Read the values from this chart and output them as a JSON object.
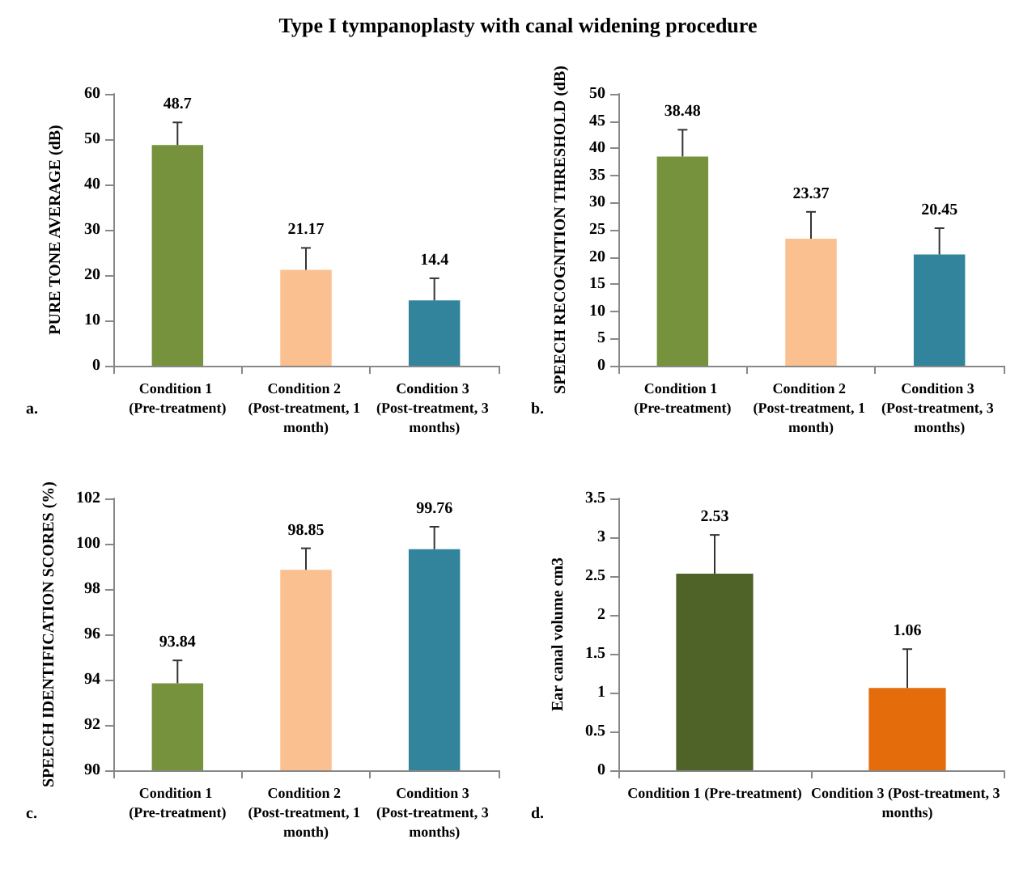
{
  "chart_data": [
    {
      "type": "bar",
      "title": "Type I tympanoplasty with canal widening procedure",
      "ylabel": "PURE TONE AVERAGE (dB)",
      "annotations": [
        "a."
      ],
      "categories": [
        "Condition 1 (Pre-treatment)",
        "Condition 2 (Post-treatment, 1 month)",
        "Condition 3 (Post-treatment, 3 months)"
      ],
      "values": [
        48.7,
        21.17,
        14.4
      ],
      "colors": [
        "#76923c",
        "#fac090",
        "#31849b"
      ],
      "errors": [
        [
          48.7,
          53.7
        ],
        [
          21.17,
          26
        ],
        [
          14.4,
          19.3
        ]
      ],
      "data_labels": true,
      "ylim": [
        0,
        60
      ],
      "yticks": [
        0,
        10,
        20,
        30,
        40,
        50,
        60
      ],
      "grid": false
    },
    {
      "type": "bar",
      "ylabel": "SPEECH RECOGNITION THRESHOLD (dB)",
      "annotations": [
        "b."
      ],
      "categories": [
        "Condition 1 (Pre-treatment)",
        "Condition 2 (Post-treatment, 1 month)",
        "Condition 3 (Post-treatment, 3 months)"
      ],
      "values": [
        38.48,
        23.37,
        20.45
      ],
      "colors": [
        "#76923c",
        "#fac090",
        "#31849b"
      ],
      "errors": [
        [
          38.48,
          43.4
        ],
        [
          23.37,
          28.3
        ],
        [
          20.45,
          25.3
        ]
      ],
      "data_labels": true,
      "ylim": [
        0,
        50
      ],
      "yticks": [
        0,
        5,
        10,
        15,
        20,
        25,
        30,
        35,
        40,
        45,
        50
      ],
      "grid": false
    },
    {
      "type": "bar",
      "ylabel": "SPEECH IDENTIFICATION SCORES (%)",
      "annotations": [
        "c."
      ],
      "categories": [
        "Condition 1 (Pre-treatment)",
        "Condition 2 (Post-treatment, 1 month)",
        "Condition 3 (Post-treatment, 3 months)"
      ],
      "values": [
        93.84,
        98.85,
        99.76
      ],
      "colors": [
        "#76923c",
        "#fac090",
        "#31849b"
      ],
      "errors": [
        [
          93.84,
          94.85
        ],
        [
          98.85,
          99.8
        ],
        [
          99.76,
          100.75
        ]
      ],
      "data_labels": true,
      "ylim": [
        90,
        102
      ],
      "yticks": [
        90,
        92,
        94,
        96,
        98,
        100,
        102
      ],
      "grid": false
    },
    {
      "type": "bar",
      "ylabel": "Ear canal volume cm3",
      "annotations": [
        "d."
      ],
      "categories": [
        "Condition 1 (Pre-treatment)",
        "Condition 3 (Post-treatment, 3 months)"
      ],
      "values": [
        2.53,
        1.06
      ],
      "colors": [
        "#4f6228",
        "#e46c0a"
      ],
      "errors": [
        [
          2.53,
          3.03
        ],
        [
          1.06,
          1.56
        ]
      ],
      "data_labels": true,
      "ylim": [
        0,
        3.5
      ],
      "yticks": [
        0,
        0.5,
        1,
        1.5,
        2,
        2.5,
        3,
        3.5
      ],
      "grid": false
    }
  ]
}
